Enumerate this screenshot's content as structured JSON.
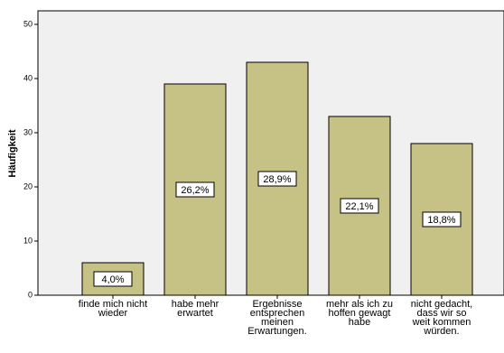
{
  "chart_data": {
    "type": "bar",
    "y_label": "Häufigkeit",
    "categories": [
      "finde mich nicht\nwieder",
      "habe mehr\nerwartet",
      "Ergebnisse\nentsprechen\nmeinen\nErwartungen.",
      "mehr als ich zu\nhoffen gewagt\nhabe",
      "nicht gedacht,\ndass wir so\nweit kommen\nwürden."
    ],
    "values": [
      6,
      39,
      43,
      33,
      28
    ],
    "value_labels": [
      "4,0%",
      "26,2%",
      "28,9%",
      "22,1%",
      "18,8%"
    ],
    "color": "#c6c285",
    "ylim": [
      0,
      52.5
    ],
    "yticks": [
      0,
      10,
      20,
      30,
      40,
      50
    ]
  }
}
